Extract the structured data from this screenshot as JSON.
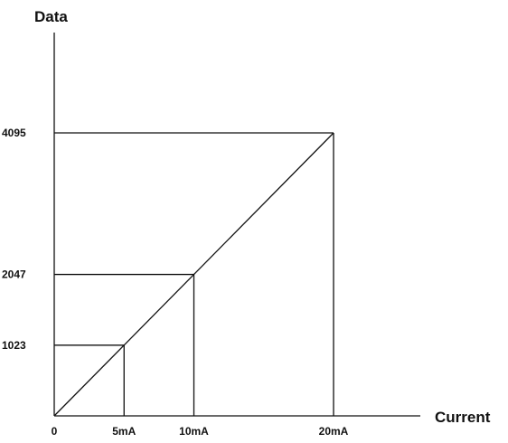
{
  "chart_data": {
    "type": "line",
    "title": "",
    "xlabel": "Current",
    "ylabel": "Data",
    "x_unit": "mA",
    "x": [
      0,
      5,
      10,
      20
    ],
    "x_tick_labels": [
      "0",
      "5mA",
      "10mA",
      "20mA"
    ],
    "y_tick_values": [
      1023,
      2047,
      4095
    ],
    "y_tick_labels": [
      "1023",
      "2047",
      "4095"
    ],
    "series": [
      {
        "values": [
          0,
          1023,
          2047,
          4095
        ]
      }
    ],
    "guides": [
      {
        "x": 5,
        "y": 1023
      },
      {
        "x": 10,
        "y": 2047
      },
      {
        "x": 20,
        "y": 4095
      }
    ],
    "xlim": [
      0,
      20
    ],
    "ylim": [
      0,
      4095
    ],
    "grid": false,
    "legend": "none",
    "colors": {
      "ink": "#111111",
      "background": "#ffffff"
    }
  }
}
